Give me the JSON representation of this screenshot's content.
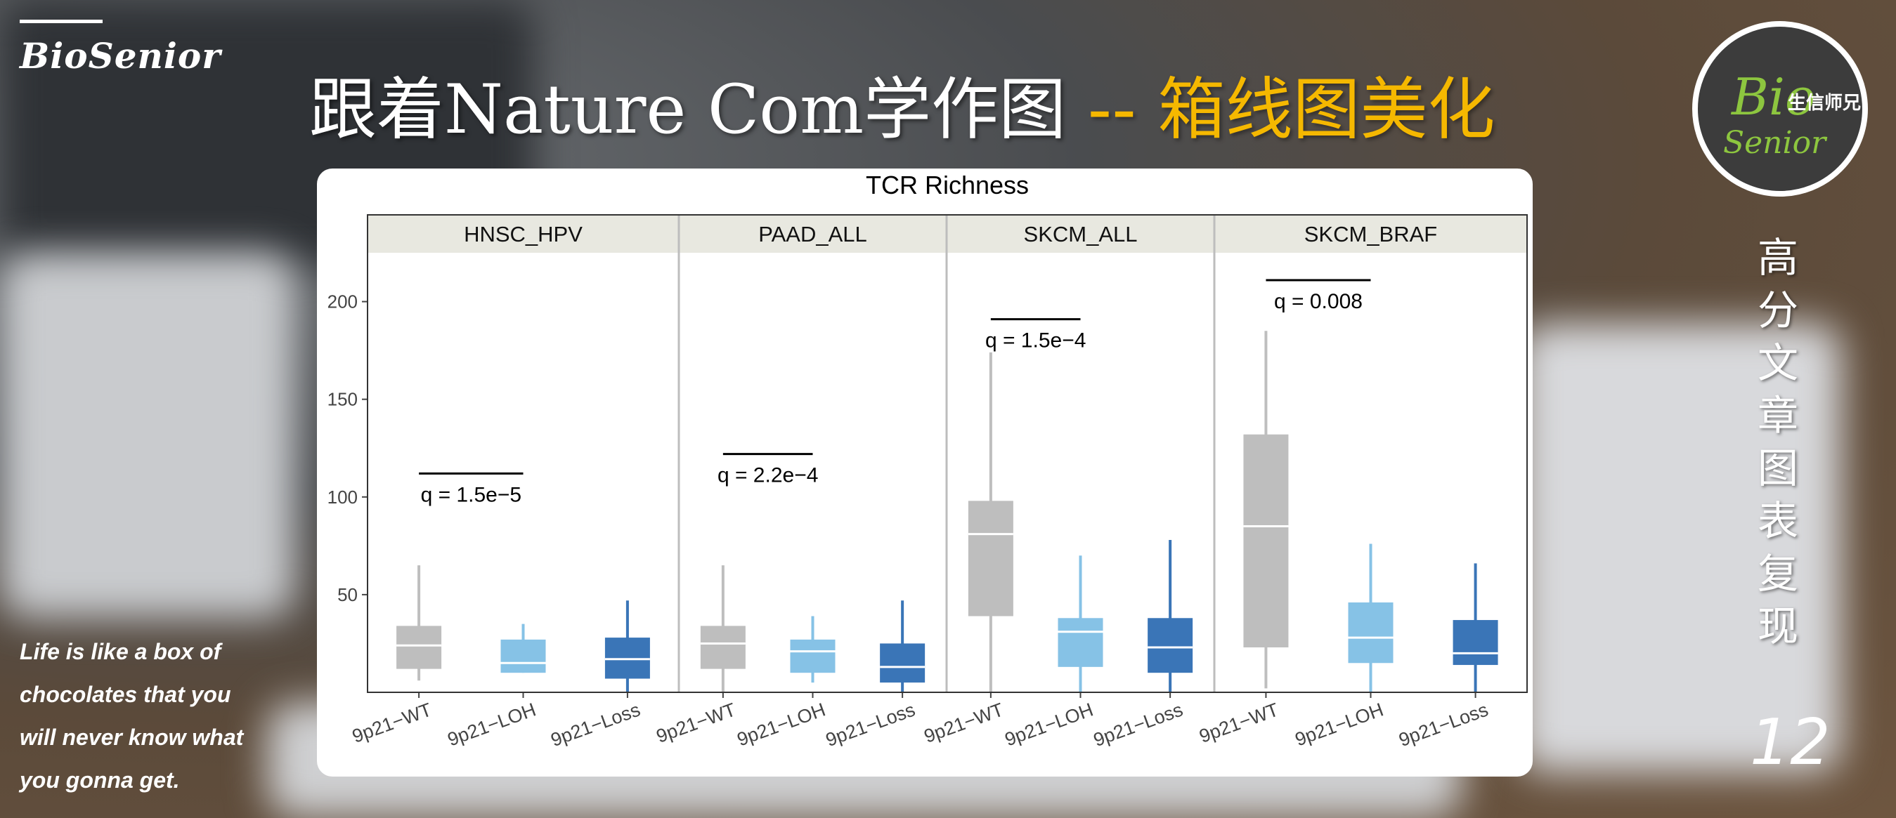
{
  "brand": "BioSenior",
  "headline": {
    "part1": "跟着Nature Com学作图",
    "part2": " -- 箱线图美化"
  },
  "logo": {
    "bio": "Bio",
    "cn": "生信师兄",
    "senior": "Senior"
  },
  "vertical_text": [
    "高",
    "分",
    "文",
    "章",
    "图",
    "表",
    "复",
    "现"
  ],
  "page_number": "12",
  "quote_lines": [
    "Life is like a box of",
    "chocolates that you",
    "will never know what",
    "you gonna get."
  ],
  "colors": {
    "WT": "#bebebe",
    "LOH": "#86c2e6",
    "Loss": "#3a75b7",
    "strip": "#e8e8e0",
    "accent": "#f5b800"
  },
  "chart_data": {
    "type": "box",
    "title": "TCR Richness",
    "ylim": [
      0,
      225
    ],
    "yticks": [
      50,
      100,
      150,
      200
    ],
    "categories": [
      "9p21−WT",
      "9p21−LOH",
      "9p21−Loss"
    ],
    "panels": [
      {
        "name": "HNSC_HPV",
        "annotation": "q = 1.5e−5",
        "bracket_y": 112,
        "boxes": [
          {
            "group": "WT",
            "min": 6,
            "q1": 12,
            "median": 24,
            "q3": 34,
            "max": 65
          },
          {
            "group": "LOH",
            "min": 10,
            "q1": 10,
            "median": 15,
            "q3": 27,
            "max": 35
          },
          {
            "group": "Loss",
            "min": 0,
            "q1": 7,
            "median": 17,
            "q3": 28,
            "max": 47
          }
        ]
      },
      {
        "name": "PAAD_ALL",
        "annotation": "q = 2.2e−4",
        "bracket_y": 122,
        "boxes": [
          {
            "group": "WT",
            "min": 0,
            "q1": 12,
            "median": 25,
            "q3": 34,
            "max": 65
          },
          {
            "group": "LOH",
            "min": 5,
            "q1": 10,
            "median": 21,
            "q3": 27,
            "max": 39
          },
          {
            "group": "Loss",
            "min": 0,
            "q1": 5,
            "median": 13,
            "q3": 25,
            "max": 47
          }
        ]
      },
      {
        "name": "SKCM_ALL",
        "annotation": "q = 1.5e−4",
        "bracket_y": 191,
        "boxes": [
          {
            "group": "WT",
            "min": 0,
            "q1": 39,
            "median": 81,
            "q3": 98,
            "max": 174
          },
          {
            "group": "LOH",
            "min": 0,
            "q1": 13,
            "median": 31,
            "q3": 38,
            "max": 70
          },
          {
            "group": "Loss",
            "min": 0,
            "q1": 10,
            "median": 23,
            "q3": 38,
            "max": 78
          }
        ]
      },
      {
        "name": "SKCM_BRAF",
        "annotation": "q = 0.008",
        "bracket_y": 211,
        "boxes": [
          {
            "group": "WT",
            "min": 2,
            "q1": 23,
            "median": 85,
            "q3": 132,
            "max": 185
          },
          {
            "group": "LOH",
            "min": 0,
            "q1": 15,
            "median": 28,
            "q3": 46,
            "max": 76
          },
          {
            "group": "Loss",
            "min": 0,
            "q1": 14,
            "median": 20,
            "q3": 37,
            "max": 66
          }
        ]
      }
    ]
  }
}
